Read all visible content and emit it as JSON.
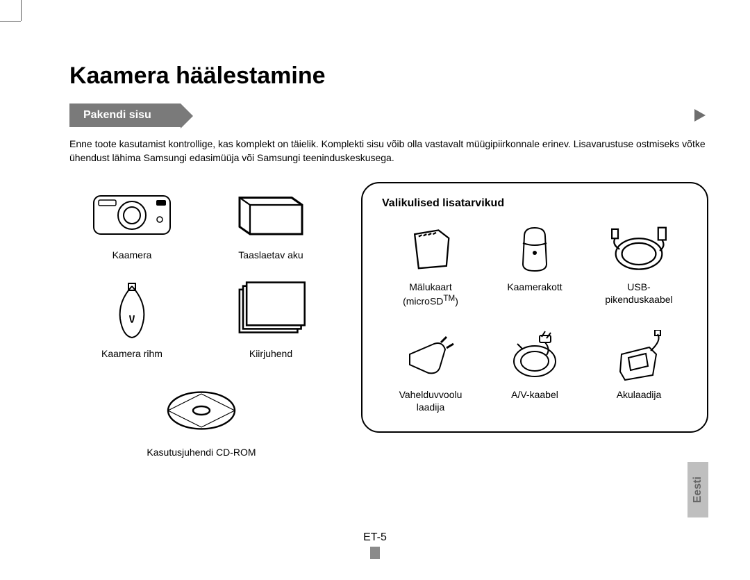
{
  "title": "Kaamera häälestamine",
  "ribbon": "Pakendi sisu",
  "intro": "Enne toote kasutamist kontrollige, kas komplekt on täielik. Komplekti sisu võib olla vastavalt müügipiirkonnale erinev. Lisavarustuse ostmiseks võtke ühendust lähima Samsungi edasimüüja või Samsungi teeninduskeskusega.",
  "included": {
    "items": [
      {
        "label": "Kaamera"
      },
      {
        "label": "Taaslaetav aku"
      },
      {
        "label": "Kaamera rihm"
      },
      {
        "label": "Kiirjuhend"
      }
    ],
    "extra": {
      "label": "Kasutusjuhendi CD-ROM"
    }
  },
  "optional": {
    "title": "Valikulised lisatarvikud",
    "items": [
      {
        "label_html": "Mälukaart\n(microSD™)"
      },
      {
        "label_html": "Kaamerakott"
      },
      {
        "label_html": "USB-\npikenduskaabel"
      },
      {
        "label_html": "Vahelduvvoolu\nlaadija"
      },
      {
        "label_html": "A/V-kaabel"
      },
      {
        "label_html": "Akulaadija"
      }
    ]
  },
  "side_tab": "Eesti",
  "page_number": "ET-5",
  "colors": {
    "ribbon_bg": "#7a7a7a",
    "ribbon_text": "#ffffff",
    "tab_bg": "#bfbfbf",
    "tab_text": "#666666",
    "text": "#000000",
    "arrow": "#6e6e6e"
  }
}
